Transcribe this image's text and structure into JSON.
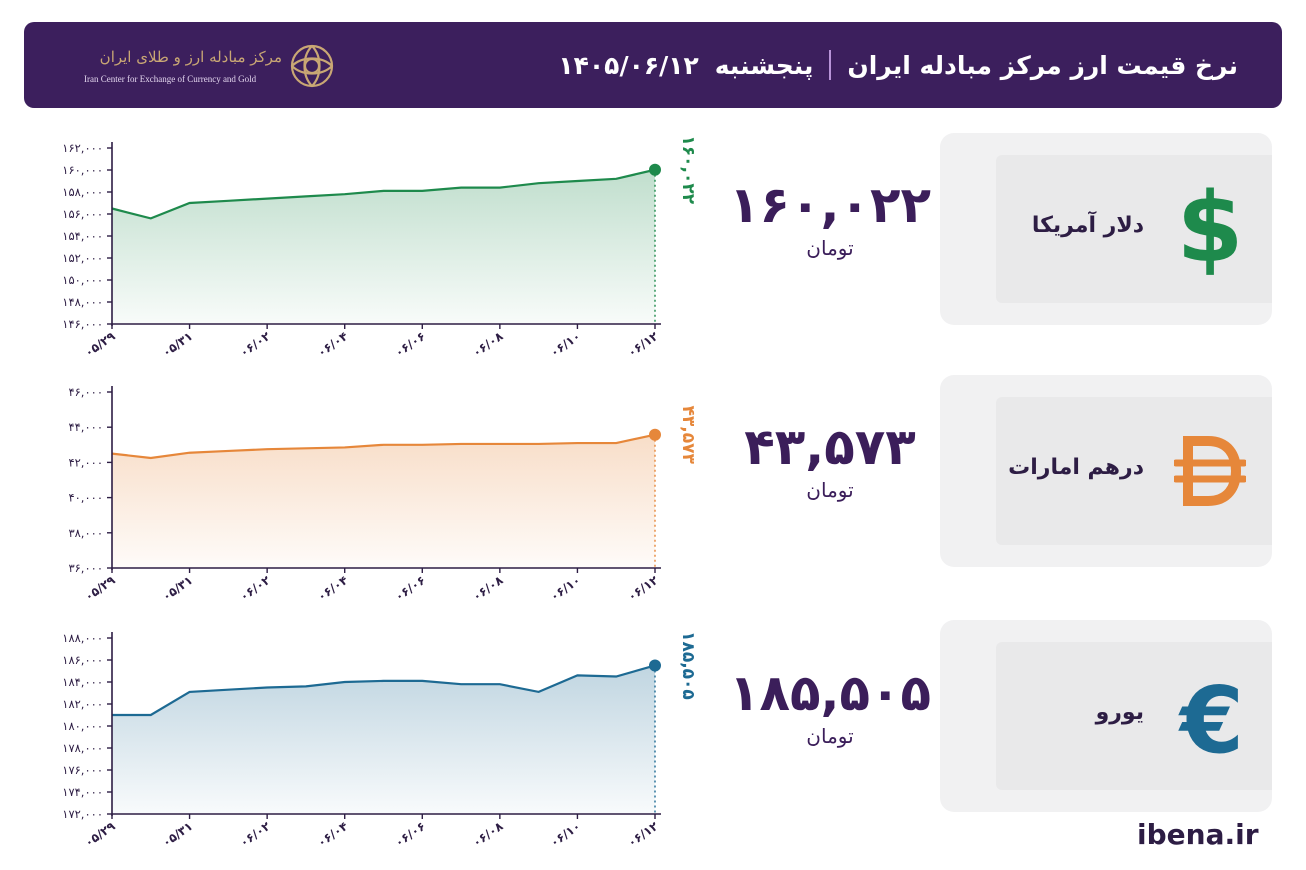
{
  "header": {
    "title": "نرخ قیمت ارز مرکز مبادله ایران",
    "day": "پنجشنبه",
    "date": "۱۴۰۵/۰۶/۱۲",
    "logo_fa": "مرکز مبادله ارز و طلای ایران",
    "logo_en": "Iran Center for Exchange of Currency and Gold"
  },
  "colors": {
    "header_bg": "#3c1f5d",
    "usd": "#1e8a4c",
    "aed": "#e6873a",
    "eur": "#1d6a93"
  },
  "cards": [
    {
      "name": "دلار آمریکا",
      "value": "۱۶۰,۰۲۲",
      "unit": "تومان",
      "icon": "dollar-icon",
      "color": "#1e8a4c"
    },
    {
      "name": "درهم امارات",
      "value": "۴۳,۵۷۳",
      "unit": "تومان",
      "icon": "dirham-icon",
      "color": "#e6873a"
    },
    {
      "name": "یورو",
      "value": "۱۸۵,۵۰۵",
      "unit": "تومان",
      "icon": "euro-icon",
      "color": "#1d6a93"
    }
  ],
  "chart_data": [
    {
      "type": "area",
      "series": [
        {
          "values": [
            156500,
            155600,
            157000,
            157200,
            157400,
            157600,
            157800,
            158100,
            158100,
            158400,
            158400,
            158800,
            159000,
            159200,
            160022
          ]
        }
      ],
      "x_ticks": [
        "۰۵/۲۹",
        "۰۵/۳۱",
        "۰۶/۰۲",
        "۰۶/۰۴",
        "۰۶/۰۶",
        "۰۶/۰۸",
        "۰۶/۱۰",
        "۰۶/۱۲"
      ],
      "y_ticks": [
        "۱۴۶,۰۰۰",
        "۱۴۸,۰۰۰",
        "۱۵۰,۰۰۰",
        "۱۵۲,۰۰۰",
        "۱۵۴,۰۰۰",
        "۱۵۶,۰۰۰",
        "۱۵۸,۰۰۰",
        "۱۶۰,۰۰۰",
        "۱۶۲,۰۰۰"
      ],
      "ylim": [
        146000,
        162000
      ],
      "last_label": "۱۶۰,۰۲۲",
      "color": "#1e8a4c"
    },
    {
      "type": "area",
      "series": [
        {
          "values": [
            42500,
            42250,
            42550,
            42650,
            42750,
            42800,
            42850,
            43000,
            43000,
            43050,
            43050,
            43050,
            43100,
            43100,
            43573
          ]
        }
      ],
      "x_ticks": [
        "۰۵/۲۹",
        "۰۵/۳۱",
        "۰۶/۰۲",
        "۰۶/۰۴",
        "۰۶/۰۶",
        "۰۶/۰۸",
        "۰۶/۱۰",
        "۰۶/۱۲"
      ],
      "y_ticks": [
        "۳۶,۰۰۰",
        "۳۸,۰۰۰",
        "۴۰,۰۰۰",
        "۴۲,۰۰۰",
        "۴۴,۰۰۰",
        "۴۶,۰۰۰"
      ],
      "ylim": [
        36000,
        46000
      ],
      "last_label": "۴۳,۵۷۳",
      "color": "#e6873a"
    },
    {
      "type": "area",
      "series": [
        {
          "values": [
            181000,
            181000,
            183100,
            183300,
            183500,
            183600,
            184000,
            184100,
            184100,
            183800,
            183800,
            183100,
            184600,
            184500,
            185505
          ]
        }
      ],
      "x_ticks": [
        "۰۵/۲۹",
        "۰۵/۳۱",
        "۰۶/۰۲",
        "۰۶/۰۴",
        "۰۶/۰۶",
        "۰۶/۰۸",
        "۰۶/۱۰",
        "۰۶/۱۲"
      ],
      "y_ticks": [
        "۱۷۲,۰۰۰",
        "۱۷۴,۰۰۰",
        "۱۷۶,۰۰۰",
        "۱۷۸,۰۰۰",
        "۱۸۰,۰۰۰",
        "۱۸۲,۰۰۰",
        "۱۸۴,۰۰۰",
        "۱۸۶,۰۰۰",
        "۱۸۸,۰۰۰"
      ],
      "ylim": [
        172000,
        188000
      ],
      "last_label": "۱۸۵,۵۰۵",
      "color": "#1d6a93"
    }
  ],
  "footer": {
    "site": "ibena.ir"
  }
}
